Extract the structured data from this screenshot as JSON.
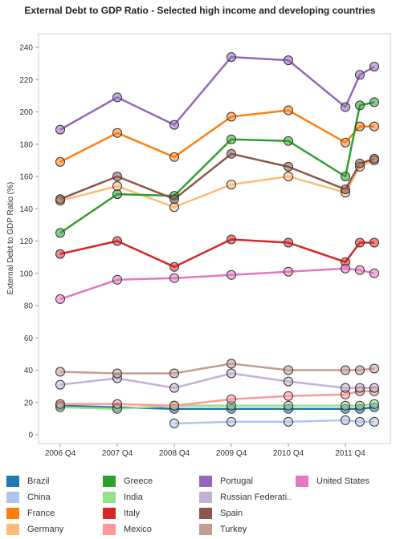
{
  "chart_data": {
    "type": "line",
    "title": "External Debt to GDP Ratio - Selected high income and developing countries",
    "ylabel": "External Debt to GDP Ratio (%)",
    "xlabel": "",
    "ylim": [
      0,
      245
    ],
    "yticks": [
      0,
      20,
      40,
      60,
      80,
      100,
      120,
      140,
      160,
      180,
      200,
      220,
      240
    ],
    "x_ticks": [
      "2006 Q4",
      "2007 Q4",
      "2008 Q4",
      "2009 Q4",
      "2010 Q4",
      "2011 Q4"
    ],
    "x_points": [
      2006,
      2007,
      2008,
      2009,
      2010,
      2011,
      2011.25,
      2011.5
    ],
    "grid": false,
    "markers": "circle",
    "series": [
      {
        "name": "Brazil",
        "color": "#1f77b4",
        "values": [
          18,
          17,
          16,
          16,
          16,
          16,
          16,
          17
        ]
      },
      {
        "name": "China",
        "color": "#aec7e8",
        "values": [
          null,
          null,
          7,
          8,
          8,
          9,
          8,
          8
        ]
      },
      {
        "name": "France",
        "color": "#ff7f0e",
        "values": [
          169,
          187,
          172,
          197,
          201,
          181,
          191,
          191
        ]
      },
      {
        "name": "Germany",
        "color": "#ffbb78",
        "values": [
          145,
          154,
          141,
          155,
          160,
          150,
          166,
          170
        ]
      },
      {
        "name": "Greece",
        "color": "#2ca02c",
        "values": [
          125,
          149,
          148,
          183,
          182,
          160,
          204,
          206
        ]
      },
      {
        "name": "India",
        "color": "#98df8a",
        "values": [
          17,
          16,
          18,
          18,
          18,
          18,
          18,
          19
        ]
      },
      {
        "name": "Italy",
        "color": "#d62728",
        "values": [
          112,
          120,
          104,
          121,
          119,
          107,
          119,
          119
        ]
      },
      {
        "name": "Mexico",
        "color": "#ff9896",
        "values": [
          19,
          19,
          18,
          22,
          24,
          25,
          27,
          27
        ]
      },
      {
        "name": "Portugal",
        "color": "#9467bd",
        "values": [
          189,
          209,
          192,
          234,
          232,
          203,
          223,
          228
        ]
      },
      {
        "name": "Russian Federati..",
        "color": "#c5b0d5",
        "values": [
          31,
          35,
          29,
          38,
          33,
          29,
          29,
          29
        ]
      },
      {
        "name": "Spain",
        "color": "#8c564b",
        "values": [
          146,
          160,
          146,
          174,
          166,
          152,
          168,
          171
        ]
      },
      {
        "name": "Turkey",
        "color": "#c49c94",
        "values": [
          39,
          38,
          38,
          44,
          40,
          40,
          40,
          41
        ]
      },
      {
        "name": "United States",
        "color": "#e377c2",
        "values": [
          84,
          96,
          97,
          99,
          101,
          103,
          102,
          100
        ]
      }
    ],
    "legend_position": "bottom"
  }
}
